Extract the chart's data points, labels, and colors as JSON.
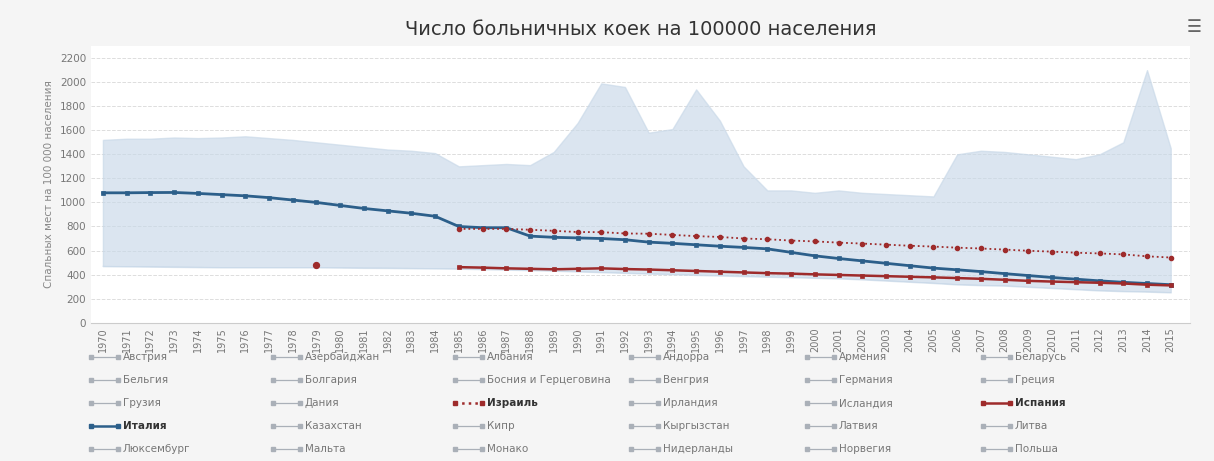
{
  "title": "Число больничных коек на 100000 населения",
  "ylabel": "Спальных мест на 100 000 населения",
  "years": [
    1970,
    1971,
    1972,
    1973,
    1974,
    1975,
    1976,
    1977,
    1978,
    1979,
    1980,
    1981,
    1982,
    1983,
    1984,
    1985,
    1986,
    1987,
    1988,
    1989,
    1990,
    1991,
    1992,
    1993,
    1994,
    1995,
    1996,
    1997,
    1998,
    1999,
    2000,
    2001,
    2002,
    2003,
    2004,
    2005,
    2006,
    2007,
    2008,
    2009,
    2010,
    2011,
    2012,
    2013,
    2014,
    2015
  ],
  "italy_years": [
    1970,
    1971,
    1972,
    1973,
    1974,
    1975,
    1976,
    1977,
    1978,
    1979,
    1980,
    1981,
    1982,
    1983,
    1984,
    1985,
    1986,
    1987,
    1988,
    1989,
    1990,
    1991,
    1992,
    1993,
    1994,
    1995,
    1996,
    1997,
    1998,
    1999,
    2000,
    2001,
    2002,
    2003,
    2004,
    2005,
    2006,
    2007,
    2008,
    2009,
    2010,
    2011,
    2012,
    2013,
    2014,
    2015
  ],
  "italy": [
    1080,
    1080,
    1082,
    1083,
    1075,
    1065,
    1055,
    1040,
    1020,
    1000,
    975,
    950,
    930,
    910,
    885,
    800,
    790,
    790,
    720,
    710,
    705,
    700,
    690,
    670,
    660,
    648,
    636,
    626,
    614,
    585,
    556,
    534,
    514,
    494,
    474,
    454,
    440,
    425,
    408,
    392,
    376,
    362,
    348,
    336,
    326,
    316
  ],
  "spain_years": [
    1985,
    1986,
    1987,
    1988,
    1989,
    1990,
    1991,
    1992,
    1993,
    1994,
    1995,
    1996,
    1997,
    1998,
    1999,
    2000,
    2001,
    2002,
    2003,
    2004,
    2005,
    2006,
    2007,
    2008,
    2009,
    2010,
    2011,
    2012,
    2013,
    2014,
    2015
  ],
  "spain": [
    462,
    458,
    452,
    448,
    444,
    448,
    452,
    446,
    442,
    436,
    430,
    424,
    418,
    412,
    408,
    402,
    397,
    392,
    387,
    382,
    377,
    371,
    365,
    357,
    348,
    342,
    337,
    332,
    326,
    316,
    310
  ],
  "israel_years": [
    1985,
    1986,
    1987,
    1988,
    1989,
    1990,
    1991,
    1992,
    1993,
    1994,
    1995,
    1996,
    1997,
    1998,
    1999,
    2000,
    2001,
    2002,
    2003,
    2004,
    2005,
    2006,
    2007,
    2008,
    2009,
    2010,
    2011,
    2012,
    2013,
    2014,
    2015
  ],
  "israel": [
    780,
    780,
    780,
    773,
    764,
    754,
    753,
    742,
    740,
    730,
    720,
    713,
    700,
    694,
    683,
    676,
    666,
    658,
    649,
    640,
    633,
    624,
    617,
    608,
    598,
    591,
    582,
    576,
    568,
    552,
    542
  ],
  "upper_band": [
    1520,
    1530,
    1530,
    1540,
    1535,
    1540,
    1550,
    1535,
    1520,
    1500,
    1480,
    1460,
    1440,
    1430,
    1410,
    1300,
    1310,
    1320,
    1310,
    1420,
    1660,
    1990,
    1960,
    1580,
    1610,
    1940,
    1680,
    1300,
    1100,
    1100,
    1080,
    1100,
    1080,
    1070,
    1060,
    1050,
    1400,
    1430,
    1420,
    1400,
    1380,
    1360,
    1400,
    1500,
    2100,
    1450
  ],
  "lower_band": [
    470,
    468,
    466,
    464,
    462,
    460,
    460,
    460,
    460,
    460,
    458,
    456,
    455,
    453,
    451,
    449,
    445,
    441,
    437,
    432,
    426,
    420,
    414,
    408,
    403,
    397,
    392,
    387,
    382,
    378,
    373,
    368,
    360,
    350,
    340,
    330,
    318,
    312,
    308,
    298,
    288,
    278,
    268,
    262,
    258,
    252
  ],
  "scatter_year": [
    1979
  ],
  "scatter_value": [
    480
  ],
  "bg_color": "#f5f5f5",
  "plot_bg": "#ffffff",
  "band_color": "#c8d8e8",
  "band_alpha": 0.65,
  "italy_color": "#2c5f8a",
  "spain_color": "#9e2b2b",
  "israel_color": "#9e2b2b",
  "other_color": "#aab0b8",
  "grid_color": "#dddddd",
  "title_fontsize": 14,
  "yticks": [
    0,
    200,
    400,
    600,
    800,
    1000,
    1200,
    1400,
    1600,
    1800,
    2000,
    2200
  ],
  "legend_items_col1": [
    "Австрия",
    "Бельгия",
    "Грузия",
    "Италия",
    "Люксембург"
  ],
  "legend_items_col2": [
    "Азербайджан",
    "Болгария",
    "Дания",
    "Казахстан",
    "Мальта"
  ],
  "legend_items_col3": [
    "Албания",
    "Босния и Герцеговина",
    "Израиль",
    "Кипр",
    "Монако"
  ],
  "legend_items_col4": [
    "Андорра",
    "Венгрия",
    "Ирландия",
    "Кыргызстан",
    "Нидерланды"
  ],
  "legend_items_col5": [
    "Армения",
    "Германия",
    "Исландия",
    "Латвия",
    "Норвегия"
  ],
  "legend_items_col6": [
    "Беларусь",
    "Греция",
    "Испания",
    "Литва",
    "Польша"
  ],
  "legend_bold": [
    "Италия",
    "Израиль",
    "Испания"
  ]
}
